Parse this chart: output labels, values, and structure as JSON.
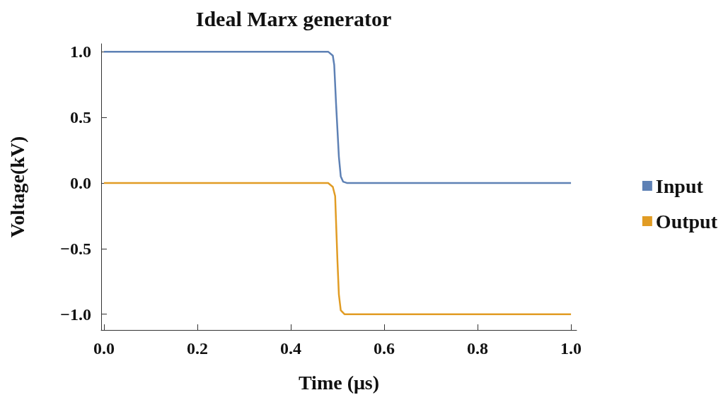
{
  "chart_data": {
    "type": "line",
    "title": "Ideal Marx generator",
    "xlabel": "Time (μs)",
    "ylabel": "Voltage(kV)",
    "xlim": [
      -0.006,
      1.012
    ],
    "ylim": [
      -1.12,
      1.06
    ],
    "xticks": [
      {
        "value": 0,
        "label": "0.0"
      },
      {
        "value": 0.2,
        "label": "0.2"
      },
      {
        "value": 0.4,
        "label": "0.4"
      },
      {
        "value": 0.6,
        "label": "0.6"
      },
      {
        "value": 0.8,
        "label": "0.8"
      },
      {
        "value": 1,
        "label": "1.0"
      }
    ],
    "yticks": [
      {
        "value": -1,
        "label": "−1.0"
      },
      {
        "value": -0.5,
        "label": "−0.5"
      },
      {
        "value": 0,
        "label": "0.0"
      },
      {
        "value": 0.5,
        "label": "0.5"
      },
      {
        "value": 1,
        "label": "1.0"
      }
    ],
    "grid": false,
    "legend": "right",
    "marker": "none",
    "series": [
      {
        "name": "Input",
        "color": "#5e81b5",
        "x": [
          0,
          0.48,
          0.49,
          0.493,
          0.497,
          0.5,
          0.503,
          0.507,
          0.512,
          0.52,
          1
        ],
        "values": [
          1,
          1,
          0.97,
          0.9,
          0.6,
          0.4,
          0.2,
          0.05,
          0.01,
          0,
          0
        ]
      },
      {
        "name": "Output",
        "color": "#e19c24",
        "x": [
          0,
          0.48,
          0.49,
          0.495,
          0.498,
          0.5,
          0.503,
          0.507,
          0.515,
          1
        ],
        "values": [
          0,
          0,
          -0.03,
          -0.1,
          -0.4,
          -0.6,
          -0.85,
          -0.97,
          -1,
          -1
        ]
      }
    ]
  }
}
